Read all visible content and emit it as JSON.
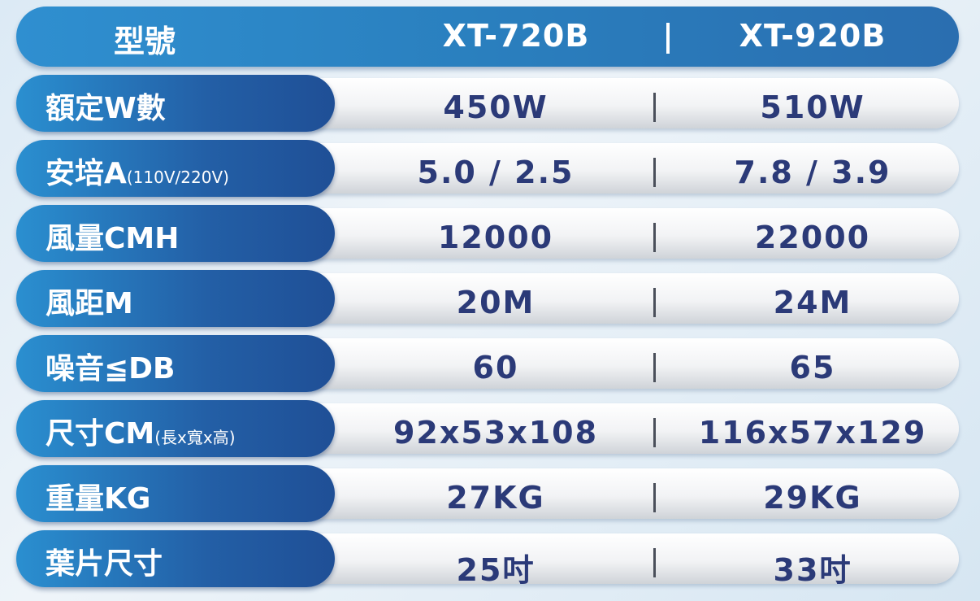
{
  "header": {
    "label": "型號",
    "models": [
      "XT-720B",
      "XT-920B"
    ]
  },
  "rows": [
    {
      "label": "額定W數",
      "note": "",
      "values": [
        "450W",
        "510W"
      ]
    },
    {
      "label": "安培A",
      "note": "(110V/220V)",
      "values": [
        "5.0 / 2.5",
        "7.8 / 3.9"
      ]
    },
    {
      "label": "風量CMH",
      "note": "",
      "values": [
        "12000",
        "22000"
      ]
    },
    {
      "label": "風距M",
      "note": "",
      "values": [
        "20M",
        "24M"
      ]
    },
    {
      "label": "噪音≦DB",
      "note": "",
      "values": [
        "60",
        "65"
      ]
    },
    {
      "label": "尺寸CM",
      "note": "(長x寬x高)",
      "values": [
        "92x53x108",
        "116x57x129"
      ]
    },
    {
      "label": "重量KG",
      "note": "",
      "values": [
        "27KG",
        "29KG"
      ]
    },
    {
      "label": "葉片尺寸",
      "note": "",
      "values": [
        "25吋",
        "33吋"
      ]
    }
  ]
}
